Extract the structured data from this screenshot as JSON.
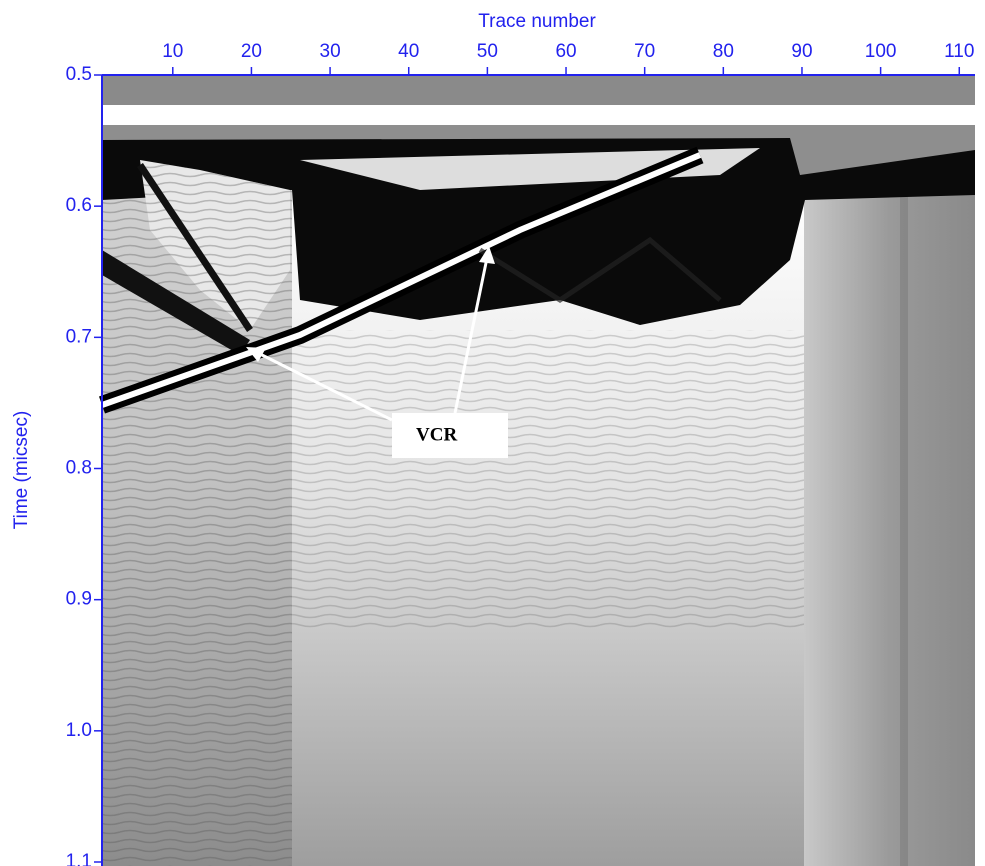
{
  "chart_data": {
    "type": "radargram",
    "xlabel": "Trace number",
    "ylabel": "Time (micsec)",
    "xlim": [
      1,
      112
    ],
    "xticks": [
      10,
      20,
      30,
      40,
      50,
      60,
      70,
      80,
      90,
      100,
      110
    ],
    "ylim": [
      0.5,
      1.1
    ],
    "yticks": [
      0.5,
      0.6,
      0.7,
      0.8,
      0.9,
      {
        "value": 1,
        "label": "1.0"
      },
      1.1
    ],
    "axis_color": "#2222ee",
    "annotation": "VCR"
  }
}
